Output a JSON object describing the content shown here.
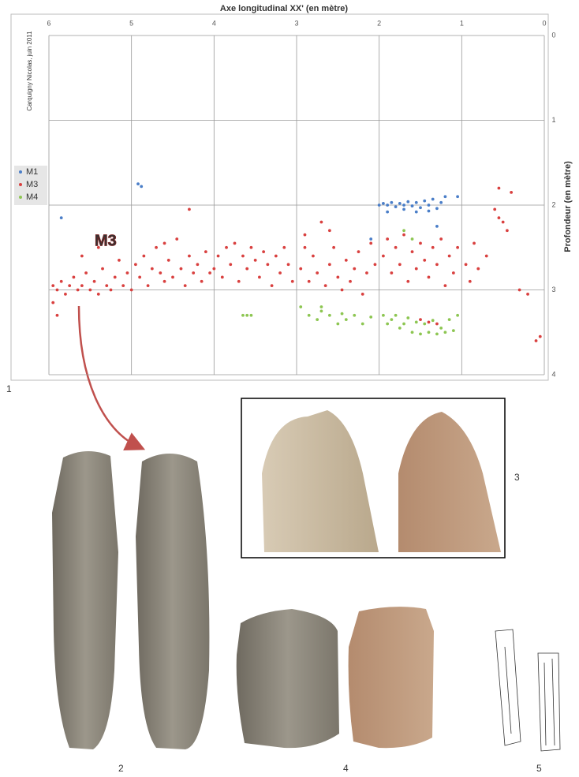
{
  "chart_data": {
    "type": "scatter",
    "title": "Axe longitudinal XX' (en mètre)",
    "y_label": "Profondeur (en mètre)",
    "credit": "Carquigny Nicolas, juin 2011",
    "annotation": "M3",
    "xlim": [
      6,
      0
    ],
    "xticks": [
      6,
      5,
      4,
      3,
      2,
      1,
      0
    ],
    "ylim": [
      0,
      4
    ],
    "yticks": [
      0,
      1,
      2,
      3,
      4
    ],
    "grid": true,
    "legend": "left",
    "series": [
      {
        "name": "M1",
        "color": "#4a7ec8",
        "x": [
          4.92,
          4.88,
          5.85,
          2.0,
          1.95,
          1.9,
          1.85,
          1.8,
          1.75,
          1.7,
          1.65,
          1.6,
          1.55,
          1.5,
          1.45,
          1.4,
          1.35,
          1.3,
          1.25,
          1.2,
          1.4,
          1.55,
          1.7,
          1.9,
          1.05,
          2.1,
          1.3
        ],
        "values": [
          1.75,
          1.78,
          2.15,
          2.0,
          1.98,
          2.0,
          1.97,
          2.02,
          1.98,
          2.0,
          1.96,
          2.01,
          1.97,
          2.03,
          1.95,
          2.0,
          1.93,
          2.04,
          1.97,
          1.9,
          2.07,
          2.08,
          2.05,
          2.08,
          1.9,
          2.4,
          2.25
        ]
      },
      {
        "name": "M3",
        "color": "#d9403f",
        "x": [
          5.95,
          5.9,
          5.85,
          5.8,
          5.75,
          5.7,
          5.65,
          5.6,
          5.55,
          5.5,
          5.45,
          5.4,
          5.35,
          5.3,
          5.25,
          5.2,
          5.15,
          5.1,
          5.05,
          5.0,
          5.9,
          5.95,
          5.6,
          5.4,
          4.95,
          4.9,
          4.85,
          4.8,
          4.75,
          4.7,
          4.65,
          4.6,
          4.55,
          4.5,
          4.45,
          4.4,
          4.35,
          4.3,
          4.25,
          4.2,
          4.15,
          4.1,
          4.05,
          4.0,
          4.3,
          4.6,
          3.95,
          3.9,
          3.85,
          3.8,
          3.75,
          3.7,
          3.65,
          3.6,
          3.55,
          3.5,
          3.45,
          3.4,
          3.35,
          3.3,
          3.25,
          3.2,
          3.15,
          3.1,
          3.05,
          2.95,
          2.9,
          2.85,
          2.8,
          2.75,
          2.7,
          2.65,
          2.6,
          2.55,
          2.5,
          2.45,
          2.4,
          2.35,
          2.3,
          2.25,
          2.2,
          2.15,
          2.1,
          2.05,
          2.6,
          2.9,
          1.95,
          1.9,
          1.85,
          1.8,
          1.75,
          1.7,
          1.65,
          1.6,
          1.55,
          1.5,
          1.45,
          1.4,
          1.35,
          1.3,
          1.25,
          1.2,
          1.15,
          1.1,
          1.05,
          1.5,
          1.4,
          1.3,
          0.95,
          0.9,
          0.85,
          0.8,
          0.7,
          0.6,
          0.55,
          0.5,
          0.45,
          0.3,
          0.2,
          0.1,
          0.05,
          0.4,
          0.55
        ],
        "values": [
          2.95,
          3.0,
          2.9,
          3.05,
          2.95,
          2.85,
          3.0,
          2.95,
          2.8,
          3.0,
          2.9,
          3.05,
          2.75,
          2.95,
          3.0,
          2.85,
          2.65,
          2.95,
          2.8,
          3.0,
          3.3,
          3.15,
          2.6,
          2.5,
          2.7,
          2.85,
          2.6,
          2.95,
          2.75,
          2.5,
          2.8,
          2.9,
          2.65,
          2.85,
          2.4,
          2.75,
          2.95,
          2.6,
          2.8,
          2.7,
          2.9,
          2.55,
          2.8,
          2.75,
          2.05,
          2.45,
          2.6,
          2.85,
          2.5,
          2.7,
          2.45,
          2.9,
          2.6,
          2.75,
          2.5,
          2.65,
          2.85,
          2.55,
          2.7,
          2.95,
          2.6,
          2.8,
          2.5,
          2.7,
          2.9,
          2.75,
          2.5,
          2.9,
          2.6,
          2.8,
          2.2,
          2.95,
          2.7,
          2.5,
          2.85,
          3.0,
          2.65,
          2.9,
          2.75,
          2.55,
          3.05,
          2.8,
          2.45,
          2.7,
          2.3,
          2.35,
          2.6,
          2.4,
          2.8,
          2.5,
          2.7,
          2.35,
          2.9,
          2.55,
          2.75,
          2.45,
          2.65,
          2.85,
          2.5,
          2.7,
          2.4,
          2.95,
          2.6,
          2.8,
          2.5,
          3.35,
          3.38,
          3.4,
          2.7,
          2.9,
          2.45,
          2.75,
          2.6,
          2.05,
          2.15,
          2.2,
          2.3,
          3.0,
          3.05,
          3.6,
          3.55,
          1.85,
          1.8
        ]
      },
      {
        "name": "M4",
        "color": "#8dc652",
        "x": [
          3.65,
          3.6,
          3.55,
          2.95,
          2.85,
          2.75,
          2.7,
          2.6,
          2.5,
          2.45,
          2.4,
          2.3,
          2.2,
          2.1,
          1.95,
          1.9,
          1.85,
          1.8,
          1.75,
          1.7,
          1.65,
          1.6,
          1.55,
          1.5,
          1.45,
          1.4,
          1.35,
          1.3,
          1.25,
          1.2,
          1.15,
          1.1,
          1.05,
          1.6,
          1.7,
          2.7
        ],
        "values": [
          3.3,
          3.3,
          3.3,
          3.2,
          3.3,
          3.35,
          3.25,
          3.3,
          3.4,
          3.28,
          3.35,
          3.3,
          3.4,
          3.32,
          3.3,
          3.4,
          3.35,
          3.3,
          3.45,
          3.4,
          3.33,
          3.5,
          3.38,
          3.52,
          3.4,
          3.5,
          3.36,
          3.52,
          3.45,
          3.5,
          3.35,
          3.48,
          3.3,
          2.4,
          2.3,
          3.2
        ]
      }
    ]
  },
  "figure_labels": [
    "1",
    "2",
    "3",
    "4",
    "5"
  ]
}
